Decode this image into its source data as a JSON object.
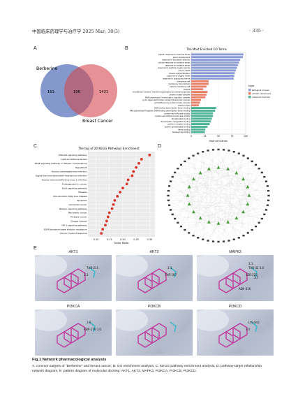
{
  "header": {
    "journal": "中国临床药理学与治疗学 2025 Mar; 30(3)",
    "page": "· 335 ·"
  },
  "panels": {
    "A": "A",
    "B": "B",
    "C": "C",
    "D": "D",
    "E": "E"
  },
  "venn": {
    "set1": "Berberine",
    "set2": "Breast Cancer",
    "only1": "163",
    "both": "196",
    "only2": "1431",
    "color1": "#6f86c6",
    "color2": "#e0767c"
  },
  "go_chart": {
    "title": "The Most Enriched GO Terms",
    "xlabel": "Num of Genes",
    "legend_title": "type",
    "legend": [
      {
        "name": "biological process",
        "color": "#8b9bd6"
      },
      {
        "name": "cellular component",
        "color": "#e8826a"
      },
      {
        "name": "molecular function",
        "color": "#4eb394"
      }
    ],
    "chart_data": {
      "type": "bar",
      "orientation": "horizontal",
      "title": "The Most Enriched GO Terms",
      "xlabel": "Num of Genes",
      "xticks": [
        "0",
        "25",
        "50",
        "75",
        "100"
      ],
      "xlim": [
        0,
        100
      ],
      "categories": [
        "cellular response to chemical stress",
        "gland development",
        "response to xenobiotic stimulus",
        "cellular response to oxidative stress",
        "response to oxidative stress",
        "response to reactive oxygen species",
        "neuron death",
        "muscle cell proliferation",
        "response to oxygen levels",
        "response to lipopolysaccharide",
        "membrane raft",
        "membrane microdomain",
        "plasma membrane raft",
        "caveola",
        "transferase complex, transferring phosphorus-containing groups",
        "protein kinase complex",
        "RNA polymerase II transcription regulator complex",
        "cyclin-dependent protein kinase holoenzyme complex",
        "serine/threonine protein kinase complex",
        "vesicle lumen",
        "DNA-binding transcription factor binding",
        "RNA polymerase II-specific DNA-binding transcription factor binding",
        "protein serine kinase activity",
        "protein serine/threonine kinase activity",
        "phosphatase binding",
        "transcription coregulator binding",
        "cytokine receptor binding",
        "protein phosphatase binding",
        "heme binding",
        "tetrapyrrole binding"
      ],
      "values": [
        96,
        95,
        90,
        88,
        86,
        84,
        82,
        80,
        79,
        78,
        32,
        32,
        28,
        22,
        30,
        28,
        26,
        18,
        16,
        14,
        46,
        44,
        40,
        40,
        38,
        36,
        34,
        30,
        26,
        25
      ],
      "types": [
        "bp",
        "bp",
        "bp",
        "bp",
        "bp",
        "bp",
        "bp",
        "bp",
        "bp",
        "bp",
        "cc",
        "cc",
        "cc",
        "cc",
        "cc",
        "cc",
        "cc",
        "cc",
        "cc",
        "cc",
        "mf",
        "mf",
        "mf",
        "mf",
        "mf",
        "mf",
        "mf",
        "mf",
        "mf",
        "mf"
      ]
    }
  },
  "kegg_chart": {
    "title": "The top of 20 KEGG Pathways Enrichment",
    "xlabel": "Gene Ratio",
    "chart_data": {
      "type": "scatter",
      "title": "The top of 20 KEGG Pathways Enrichment",
      "xlabel": "Gene Ratio",
      "xticks": [
        "0.10",
        "0.15",
        "0.20",
        "0.25",
        "0.30"
      ],
      "xlim": [
        0.07,
        0.32
      ],
      "categories": [
        "PI3K-Akt signaling pathway",
        "Lipid and atherosclerosis",
        "AGE-RAGE signaling pathway in diabetic complications",
        "Hepatitis B",
        "Human cytomegalovirus infection",
        "Kaposi sarcoma-associated herpesvirus infection",
        "Human immunodeficiency virus 1 infection",
        "Proteoglycans in cancer",
        "FoxO signaling pathway",
        "Measles",
        "Non-alcoholic fatty liver disease",
        "Apoptosis",
        "Colorectal cancer",
        "Relaxin signaling pathway",
        "Pancreatic cancer",
        "Prostate cancer",
        "Chagas disease",
        "HIF-1 signaling pathway",
        "EGFR tyrosine kinase inhibitor resistance",
        "Chronic myeloid leukemia"
      ],
      "values": [
        0.3,
        0.27,
        0.26,
        0.25,
        0.24,
        0.235,
        0.22,
        0.215,
        0.2,
        0.19,
        0.18,
        0.17,
        0.165,
        0.16,
        0.15,
        0.145,
        0.14,
        0.135,
        0.125,
        0.12
      ],
      "point_color": "#d9342b"
    }
  },
  "docking": [
    {
      "title": "AKT1",
      "labels": [
        "THR-211",
        "3.3"
      ]
    },
    {
      "title": "AKT2",
      "labels": [
        "3.1",
        "THR-187"
      ]
    },
    {
      "title": "MAPK3",
      "labels": [
        "THR-32 3.0",
        "SER-223",
        "3.1",
        "3.7",
        "ASN-316"
      ]
    },
    {
      "title": "PI3KCA",
      "labels": [
        "3.0",
        "ASN-170 3.0"
      ]
    },
    {
      "title": "PI3KCB",
      "labels": []
    },
    {
      "title": "PI3KCD",
      "labels": [
        "LYS-842",
        "3.0"
      ]
    }
  ],
  "caption": {
    "title": "Fig.1   Network pharmacological analysis",
    "body": "A: common targets of \"Berberine\" and breast cancer; B: GO enrichment analysis; C: KEGG pathway enrichment analysis; D: pathway-target relationship network diagram; E: pattern diagram of molecular docking: AKT1, AKT2, MAPK3, PI3KCA, PI3KCB, PI3KCD."
  }
}
